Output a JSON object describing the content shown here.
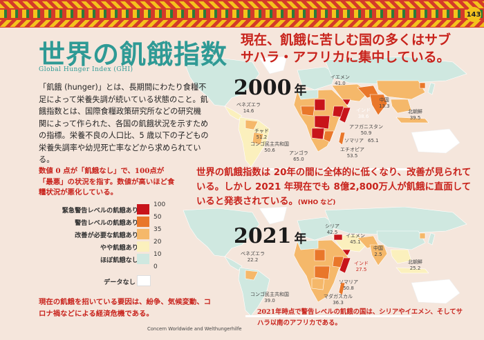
{
  "page_number": "143",
  "title": "世界の飢餓指数",
  "subtitle": "Global Hunger Index (GHI)",
  "headline": [
    "現在、飢餓に苦しむ国の多くはサブ",
    "サハラ・アフリカに集中している。"
  ],
  "intro": "「飢餓 (hunger)」とは、長期間にわたり食糧不足によって栄養失調が続いている状態のこと。飢餓指数とは、国際食糧政策研究所などの研究機関によって作られた、各国の飢餓状況を示すための指標。栄養不良の人口比、5 歳以下の子どもの栄養失調率や幼児死亡率などから求められている。",
  "scale_note": "数値 0 点が「飢餓なし」で、100点が「最悪」の状況を指す。数値が高いほど食糧状況が悪化している。",
  "legend": {
    "items": [
      {
        "label": "緊急警告レベルの飢餓あり",
        "color": "#c8141a"
      },
      {
        "label": "警告レベルの飢餓あり",
        "color": "#e9772a"
      },
      {
        "label": "改善が必要な飢餓あり",
        "color": "#f5b86a"
      },
      {
        "label": "やや飢餓あり",
        "color": "#fbf0bd"
      },
      {
        "label": "ほぼ飢餓なし",
        "color": "#cfe8e0"
      }
    ],
    "ticks": [
      "100",
      "50",
      "35",
      "20",
      "10",
      "0"
    ],
    "nodata_label": "データなし",
    "nodata_color": "#ffffff"
  },
  "causes": "現在の飢餓を招いている要因は、紛争、気候変動、コロナ禍などによる経済危機である。",
  "source": "Concern Worldwide and Welthungerhilfe",
  "year_2000": {
    "num": "2000",
    "unit": "年"
  },
  "year_2021": {
    "num": "2021",
    "unit": "年"
  },
  "mid_text": "世界の飢餓指数は 20年の間に全体的に低くなり、改善が見られている。しかし 2021 年現在でも 8億2,800万人が飢餓に直面していると発表されている。",
  "mid_text_source": "(WHO など)",
  "bottom_note": "2021年時点で警告レベルの飢餓の国は、シリアやイエメン、そしてサハラ以南のアフリカである。",
  "labels_2000": [
    {
      "name": "イエメン",
      "value": "41.0"
    },
    {
      "name": "インド",
      "value": "38.6"
    },
    {
      "name": "中国",
      "value": "13.3"
    },
    {
      "name": "北朝鮮",
      "value": "39.5"
    },
    {
      "name": "ベネズエラ",
      "value": "14.6"
    },
    {
      "name": "チャド",
      "value": "51.2"
    },
    {
      "name": "コンゴ民主共和国",
      "value": "50.6"
    },
    {
      "name": "アンゴラ",
      "value": "65.0"
    },
    {
      "name": "アフガニスタン",
      "value": "50.9"
    },
    {
      "name": "ソマリア",
      "value": "65.1"
    },
    {
      "name": "エチオピア",
      "value": "53.5"
    }
  ],
  "labels_2021": [
    {
      "name": "シリア",
      "value": "42.5"
    },
    {
      "name": "イエメン",
      "value": "45.1"
    },
    {
      "name": "中国",
      "value": "2.5"
    },
    {
      "name": "インド",
      "value": "27.5"
    },
    {
      "name": "北朝鮮",
      "value": "25.2"
    },
    {
      "name": "ベネズエラ",
      "value": "22.2"
    },
    {
      "name": "ソマリア",
      "value": "50.8"
    },
    {
      "name": "コンゴ民主共和国",
      "value": "39.0"
    },
    {
      "name": "マダガスカル",
      "value": "36.3"
    }
  ]
}
